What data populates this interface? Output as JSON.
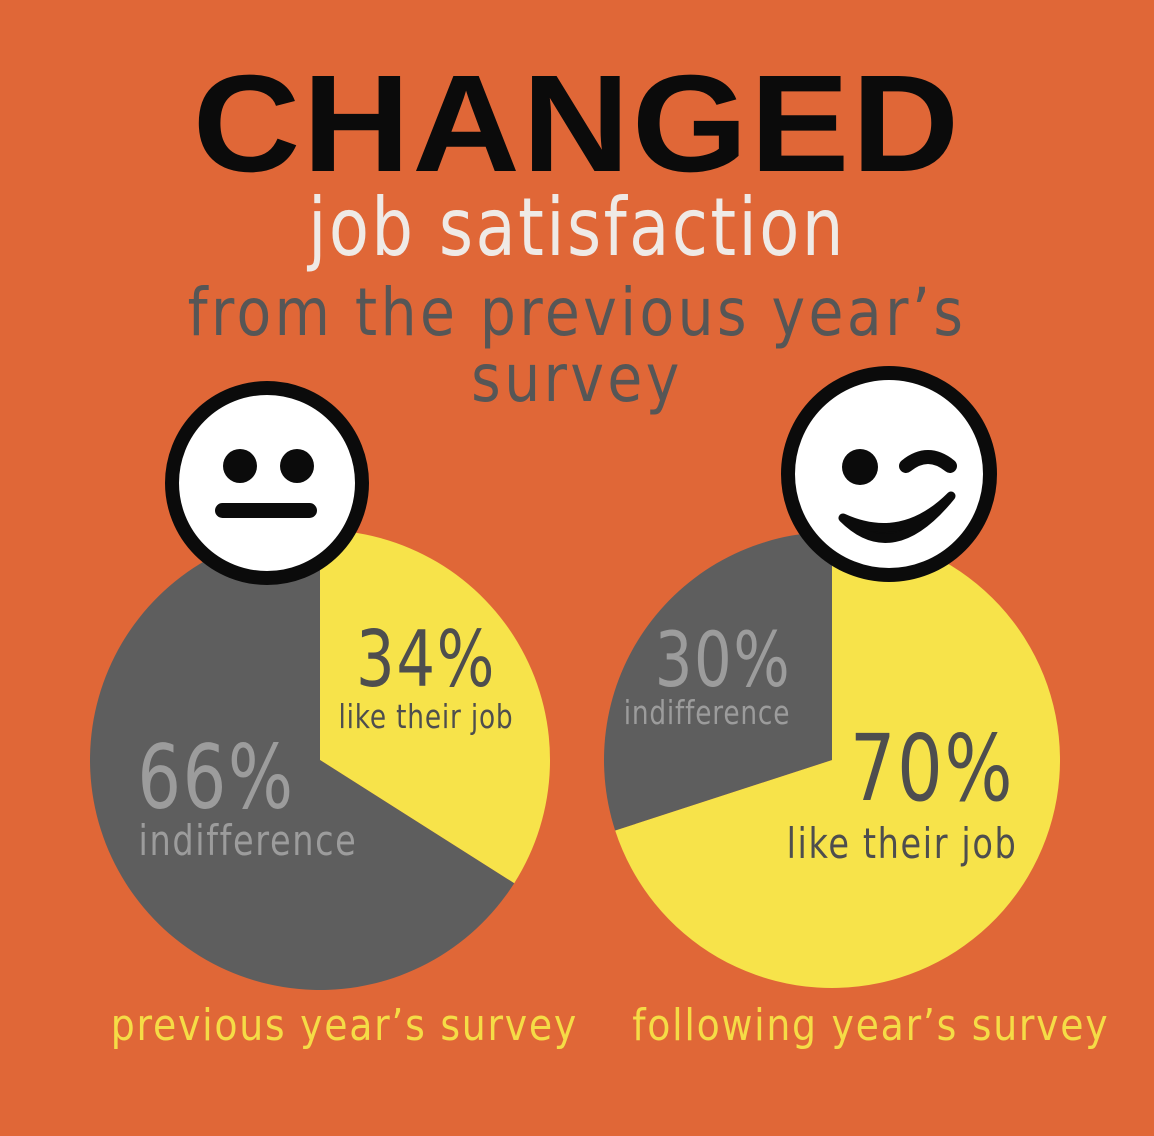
{
  "title": "CHANGED",
  "subtitle_line1": "job satisfaction",
  "subtitle_line2": "from the previous year’s survey",
  "colors": {
    "background": "#E06737",
    "like": "#F7E34A",
    "indifference": "#5E5E5E",
    "like_text": "#4E4E4E",
    "indifference_text": "#9C9C9C",
    "caption": "#F5DC46"
  },
  "chart_data": [
    {
      "type": "pie",
      "caption": "previous year’s survey",
      "face_icon": "neutral-face-icon",
      "slices": [
        {
          "label": "like their job",
          "value": 34,
          "value_text": "34%"
        },
        {
          "label": "indifference",
          "value": 66,
          "value_text": "66%"
        }
      ]
    },
    {
      "type": "pie",
      "caption": "following year’s survey",
      "face_icon": "winking-face-icon",
      "slices": [
        {
          "label": "like their job",
          "value": 70,
          "value_text": "70%"
        },
        {
          "label": "indifference",
          "value": 30,
          "value_text": "30%"
        }
      ]
    }
  ]
}
